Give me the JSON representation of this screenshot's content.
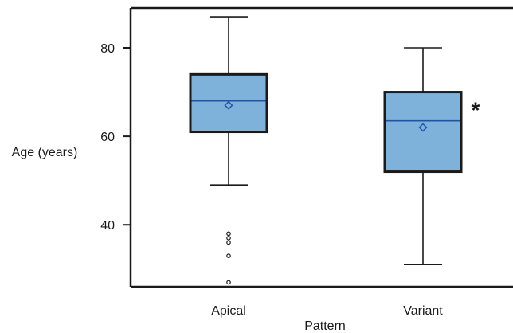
{
  "chart_data": {
    "type": "box",
    "xlabel": "Pattern",
    "ylabel": "Age (years)",
    "ylim": [
      26,
      89
    ],
    "yticks": [
      40,
      60,
      80
    ],
    "grid": false,
    "colors": {
      "box_fill": "#7fb2da",
      "box_stroke": "#1a1a1a",
      "median": "#1f55a8",
      "mean_marker": "#1f55a8"
    },
    "categories": [
      "Apical",
      "Variant"
    ],
    "boxes": [
      {
        "category": "Apical",
        "whisker_low": 49,
        "q1": 61,
        "median": 68,
        "q3": 74,
        "whisker_high": 87,
        "mean": 67,
        "outliers": [
          38,
          37,
          36,
          33,
          27
        ]
      },
      {
        "category": "Variant",
        "whisker_low": 31,
        "q1": 52,
        "median": 63.5,
        "q3": 70,
        "whisker_high": 80,
        "mean": 62,
        "outliers": []
      }
    ],
    "annotations": [
      {
        "category": "Variant",
        "text": "*"
      }
    ]
  }
}
